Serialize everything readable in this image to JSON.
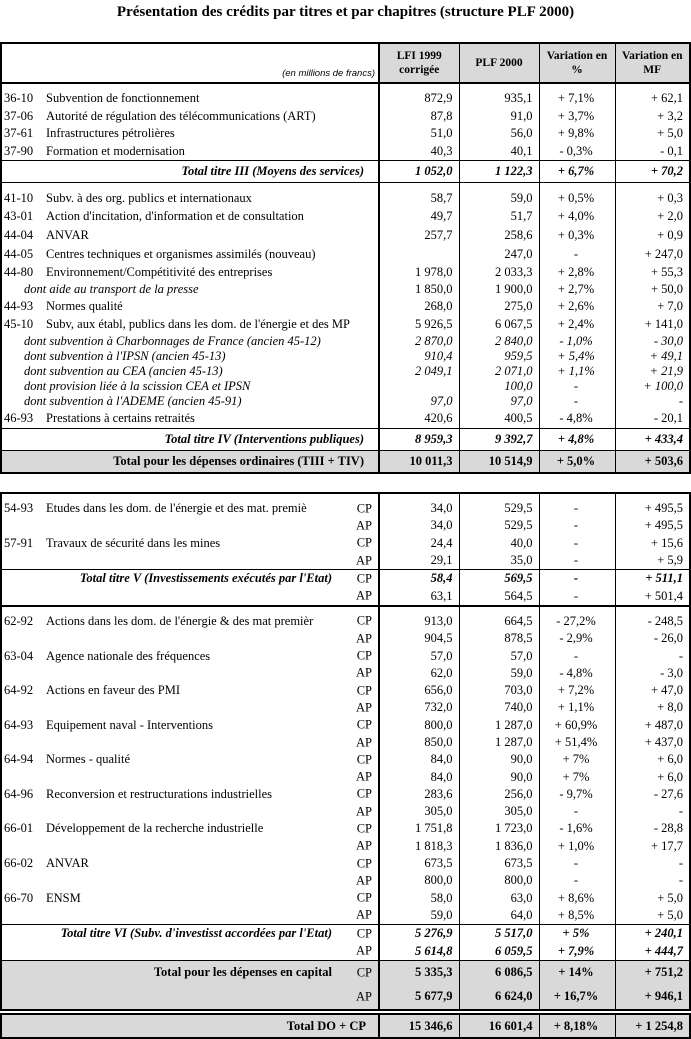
{
  "title": "Présentation des crédits par titres et par chapitres (structure PLF 2000)",
  "header": {
    "unit_note": "(en millions de francs)",
    "columns": [
      "LFI 1999\ncorrigée",
      "PLF  2000",
      "Variation en\n%",
      "Variation en\nMF"
    ]
  },
  "section1": [
    {
      "kind": "spacer"
    },
    {
      "kind": "item",
      "code": "36-10",
      "label": "Subvention de fonctionnement",
      "values": [
        "872,9",
        "935,1",
        "+ 7,1%",
        "+ 62,1"
      ]
    },
    {
      "kind": "item",
      "code": "37-06",
      "label": "Autorité de régulation des télécommunications (ART)",
      "values": [
        "87,8",
        "91,0",
        "+ 3,7%",
        "+ 3,2"
      ]
    },
    {
      "kind": "item",
      "code": "37-61",
      "label": "Infrastructures pétrolières",
      "values": [
        "51,0",
        "56,0",
        "+ 9,8%",
        "+ 5,0"
      ]
    },
    {
      "kind": "item",
      "code": "37-90",
      "label": "Formation et modernisation",
      "values": [
        "40,3",
        "40,1",
        "- 0,3%",
        "- 0,1"
      ]
    },
    {
      "kind": "total",
      "label": "Total titre III (Moyens des services)",
      "values": [
        "1 052,0",
        "1 122,3",
        "+ 6,7%",
        "+ 70,2"
      ]
    },
    {
      "kind": "spacer"
    },
    {
      "kind": "item4",
      "code": "41-10",
      "label": "Subv. à des org. publics et internationaux",
      "values": [
        "58,7",
        "59,0",
        "+ 0,5%",
        "+ 0,3"
      ]
    },
    {
      "kind": "item4",
      "code": "43-01",
      "label": "Action d'incitation, d'information et de consultation",
      "values": [
        "49,7",
        "51,7",
        "+ 4,0%",
        "+ 2,0"
      ]
    },
    {
      "kind": "item4",
      "code": "44-04",
      "label": "ANVAR",
      "values": [
        "257,7",
        "258,6",
        "+ 0,3%",
        "+ 0,9"
      ]
    },
    {
      "kind": "item4",
      "code": "44-05",
      "label": "Centres techniques et organismes assimilés (nouveau)",
      "values": [
        "",
        "247,0",
        "-",
        "+ 247,0"
      ]
    },
    {
      "kind": "item4",
      "code": "44-80",
      "label": "Environnement/Compétitivité des entreprises",
      "values": [
        "1 978,0",
        "2 033,3",
        "+ 2,8%",
        "+ 55,3"
      ]
    },
    {
      "kind": "sub",
      "label": "dont aide au transport de la presse",
      "values": [
        "1 850,0",
        "1 900,0",
        "+ 2,7%",
        "+ 50,0"
      ]
    },
    {
      "kind": "item4",
      "code": "44-93",
      "label": "Normes qualité",
      "values": [
        "268,0",
        "275,0",
        "+ 2,6%",
        "+ 7,0"
      ]
    },
    {
      "kind": "item4",
      "code": "45-10",
      "label": "Subv, aux établ, publics dans les dom. de l'énergie et des MP",
      "values": [
        "5 926,5",
        "6 067,5",
        "+ 2,4%",
        "+ 141,0"
      ]
    },
    {
      "kind": "subi",
      "label": "dont subvention à Charbonnages de France (ancien 45-12)",
      "values": [
        "2 870,0",
        "2 840,0",
        "- 1,0%",
        "- 30,0"
      ]
    },
    {
      "kind": "subi",
      "label": "dont subvention à l'IPSN (ancien 45-13)",
      "values": [
        "910,4",
        "959,5",
        "+ 5,4%",
        "+ 49,1"
      ]
    },
    {
      "kind": "subi",
      "label": "dont subvention au CEA  (ancien 45-13)",
      "values": [
        "2 049,1",
        "2 071,0",
        "+ 1,1%",
        "+ 21,9"
      ]
    },
    {
      "kind": "subi",
      "label": "dont provision liée à la scission CEA et IPSN",
      "values": [
        "",
        "100,0",
        "-",
        "+ 100,0"
      ]
    },
    {
      "kind": "subi",
      "label": "dont subvention à l'ADEME (ancien 45-91)",
      "values": [
        "97,0",
        "97,0",
        "-",
        "-"
      ]
    },
    {
      "kind": "item4",
      "code": "46-93",
      "label": "Prestations à certains retraités",
      "values": [
        "420,6",
        "400,5",
        "- 4,8%",
        "- 20,1"
      ]
    },
    {
      "kind": "total",
      "label": "Total titre IV (Interventions publiques)",
      "values": [
        "8 959,3",
        "9 392,7",
        "+ 4,8%",
        "+ 433,4"
      ]
    },
    {
      "kind": "grand",
      "label": "Total pour les dépenses ordinaires (TIII + TIV)",
      "values": [
        "10 011,3",
        "10 514,9",
        "+ 5,0%",
        "+ 503,6"
      ]
    }
  ],
  "section2": [
    {
      "kind": "spacer"
    },
    {
      "kind": "r2",
      "code": "54-93",
      "label": "Etudes dans les dom. de l'énergie et des mat. premiè",
      "type": "CP",
      "values": [
        "34,0",
        "529,5",
        "-",
        "+ 495,5"
      ]
    },
    {
      "kind": "r2",
      "type": "AP",
      "values": [
        "34,0",
        "529,5",
        "-",
        "+ 495,5"
      ]
    },
    {
      "kind": "r2",
      "code": "57-91",
      "label": "Travaux de sécurité dans les mines",
      "type": "CP",
      "values": [
        "24,4",
        "40,0",
        "-",
        "+ 15,6"
      ]
    },
    {
      "kind": "r2 sep",
      "type": "AP",
      "values": [
        "29,1",
        "35,0",
        "-",
        "+ 5,9"
      ]
    },
    {
      "kind": "r2 tot",
      "label": "Total titre V (Investissements exécutés par l'Etat)",
      "type": "CP",
      "values": [
        "58,4",
        "569,5",
        "-",
        "+ 511,1"
      ]
    },
    {
      "kind": "r2 thick",
      "type": "AP",
      "values": [
        "63,1",
        "564,5",
        "-",
        "+ 501,4"
      ]
    },
    {
      "kind": "spacer"
    },
    {
      "kind": "r2",
      "code": "62-92",
      "label": "Actions dans les dom. de l'énergie & des mat premièr",
      "type": "CP",
      "values": [
        "913,0",
        "664,5",
        "- 27,2%",
        "- 248,5"
      ]
    },
    {
      "kind": "r2",
      "type": "AP",
      "values": [
        "904,5",
        "878,5",
        "- 2,9%",
        "- 26,0"
      ]
    },
    {
      "kind": "r2",
      "code": "63-04",
      "label": "Agence nationale des fréquences",
      "type": "CP",
      "values": [
        "57,0",
        "57,0",
        "-",
        "-"
      ]
    },
    {
      "kind": "r2",
      "type": "AP",
      "values": [
        "62,0",
        "59,0",
        "- 4,8%",
        "- 3,0"
      ]
    },
    {
      "kind": "r2",
      "code": "64-92",
      "label": "Actions en faveur des PMI",
      "type": "CP",
      "values": [
        "656,0",
        "703,0",
        "+ 7,2%",
        "+ 47,0"
      ]
    },
    {
      "kind": "r2",
      "type": "AP",
      "values": [
        "732,0",
        "740,0",
        "+ 1,1%",
        "+ 8,0"
      ]
    },
    {
      "kind": "r2",
      "code": "64-93",
      "label": "Equipement naval - Interventions",
      "type": "CP",
      "values": [
        "800,0",
        "1 287,0",
        "+ 60,9%",
        "+ 487,0"
      ]
    },
    {
      "kind": "r2",
      "type": "AP",
      "values": [
        "850,0",
        "1 287,0",
        "+ 51,4%",
        "+ 437,0"
      ]
    },
    {
      "kind": "r2",
      "code": "64-94",
      "label": "Normes - qualité",
      "type": "CP",
      "values": [
        "84,0",
        "90,0",
        "+ 7%",
        "+ 6,0"
      ]
    },
    {
      "kind": "r2",
      "type": "AP",
      "values": [
        "84,0",
        "90,0",
        "+ 7%",
        "+ 6,0"
      ]
    },
    {
      "kind": "r2",
      "code": "64-96",
      "label": "Reconversion et restructurations industrielles",
      "type": "CP",
      "values": [
        "283,6",
        "256,0",
        "- 9,7%",
        "- 27,6"
      ]
    },
    {
      "kind": "r2",
      "type": "AP",
      "values": [
        "305,0",
        "305,0",
        "-",
        "-"
      ]
    },
    {
      "kind": "r2",
      "code": "66-01",
      "label": "Développement de la recherche industrielle",
      "type": "CP",
      "values": [
        "1 751,8",
        "1 723,0",
        "- 1,6%",
        "- 28,8"
      ]
    },
    {
      "kind": "r2",
      "type": "AP",
      "values": [
        "1 818,3",
        "1 836,0",
        "+ 1,0%",
        "+ 17,7"
      ]
    },
    {
      "kind": "r2",
      "code": "66-02",
      "label": "ANVAR",
      "type": "CP",
      "values": [
        "673,5",
        "673,5",
        "-",
        "-"
      ]
    },
    {
      "kind": "r2",
      "type": "AP",
      "values": [
        "800,0",
        "800,0",
        "-",
        "-"
      ]
    },
    {
      "kind": "r2",
      "code": "66-70",
      "label": "ENSM",
      "type": "CP",
      "values": [
        "58,0",
        "63,0",
        "+ 8,6%",
        "+ 5,0"
      ]
    },
    {
      "kind": "r2 sep",
      "type": "AP",
      "values": [
        "59,0",
        "64,0",
        "+ 8,5%",
        "+ 5,0"
      ]
    },
    {
      "kind": "r2 tot",
      "label": "Total titre VI (Subv. d'investisst accordées par l'Etat)",
      "type": "CP",
      "values": [
        "5 276,9",
        "5 517,0",
        "+ 5%",
        "+ 240,1"
      ]
    },
    {
      "kind": "r2 tot sep",
      "type": "AP",
      "values": [
        "5 614,8",
        "6 059,5",
        "+ 7,9%",
        "+ 444,7"
      ]
    },
    {
      "kind": "r2 cap",
      "label": "Total pour les dépenses en capital",
      "type": "CP",
      "values": [
        "5 335,3",
        "6 086,5",
        "+ 14%",
        "+ 751,2"
      ]
    },
    {
      "kind": "r2 cap",
      "type": "AP",
      "values": [
        "5 677,9",
        "6 624,0",
        "+ 16,7%",
        "+ 946,1"
      ]
    }
  ],
  "grand_total": {
    "label": "Total DO + CP",
    "values": [
      "15 346,6",
      "16 601,4",
      "+ 8,18%",
      "+ 1 254,8"
    ]
  }
}
